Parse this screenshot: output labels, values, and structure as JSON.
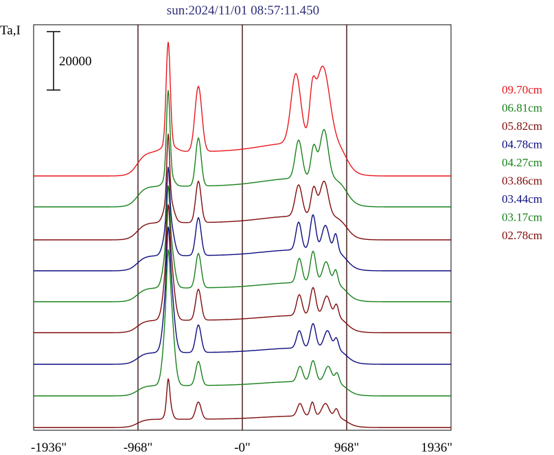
{
  "chart_data": {
    "type": "line",
    "title": "sun:2024/11/01 08:57:11.450",
    "ylabel": "Ta,I",
    "xlabel": "",
    "x_ticks": [
      {
        "value": -1936,
        "label": "-1936\""
      },
      {
        "value": -968,
        "label": "-968\""
      },
      {
        "value": 0,
        "label": "-0\""
      },
      {
        "value": 968,
        "label": "968\""
      },
      {
        "value": 1936,
        "label": "1936\""
      }
    ],
    "xlim": [
      -1936,
      1936
    ],
    "scale_bar": {
      "value": 20000,
      "label": "20000"
    },
    "grid_x": [
      -968,
      0,
      968
    ],
    "series": [
      {
        "name": "09.70cm",
        "color": "#e8161c"
      },
      {
        "name": "06.81cm",
        "color": "#17801a"
      },
      {
        "name": "05.82cm",
        "color": "#7f0b0b"
      },
      {
        "name": "04.78cm",
        "color": "#0b0b80"
      },
      {
        "name": "04.27cm",
        "color": "#17801a"
      },
      {
        "name": "03.86cm",
        "color": "#7f0b0b"
      },
      {
        "name": "03.44cm",
        "color": "#0b0b80"
      },
      {
        "name": "03.17cm",
        "color": "#17801a"
      },
      {
        "name": "02.78cm",
        "color": "#7f0b0b"
      }
    ]
  }
}
